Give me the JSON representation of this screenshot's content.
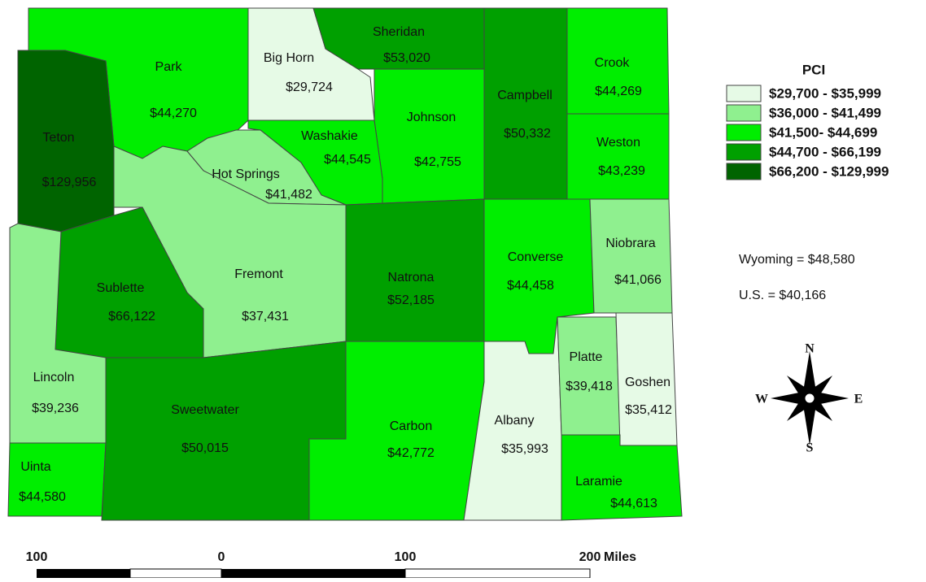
{
  "legend": {
    "title": "PCI",
    "classes": [
      {
        "label": "$29,700 - $35,999",
        "color": "#e6fae6"
      },
      {
        "label": "$36,000 - $41,499",
        "color": "#8ff08f"
      },
      {
        "label": "$41,500- $44,699",
        "color": "#00ee00"
      },
      {
        "label": "$44,700 - $66,199",
        "color": "#00a000"
      },
      {
        "label": "$66,200 - $129,999",
        "color": "#006400"
      }
    ]
  },
  "counties": [
    {
      "name": "Park",
      "pci": "$44,270",
      "color": "#00ee00"
    },
    {
      "name": "Big Horn",
      "pci": "$29,724",
      "color": "#e6fae6"
    },
    {
      "name": "Sheridan",
      "pci": "$53,020",
      "color": "#00a000"
    },
    {
      "name": "Campbell",
      "pci": "$50,332",
      "color": "#00a000"
    },
    {
      "name": "Crook",
      "pci": "$44,269",
      "color": "#00ee00"
    },
    {
      "name": "Weston",
      "pci": "$43,239",
      "color": "#00ee00"
    },
    {
      "name": "Johnson",
      "pci": "$42,755",
      "color": "#00ee00"
    },
    {
      "name": "Washakie",
      "pci": "$44,545",
      "color": "#00ee00"
    },
    {
      "name": "Hot Springs",
      "pci": "$41,482",
      "color": "#8ff08f"
    },
    {
      "name": "Teton",
      "pci": "$129,956",
      "color": "#006400"
    },
    {
      "name": "Fremont",
      "pci": "$37,431",
      "color": "#8ff08f"
    },
    {
      "name": "Sublette",
      "pci": "$66,122",
      "color": "#00a000"
    },
    {
      "name": "Lincoln",
      "pci": "$39,236",
      "color": "#8ff08f"
    },
    {
      "name": "Uinta",
      "pci": "$44,580",
      "color": "#00ee00"
    },
    {
      "name": "Sweetwater",
      "pci": "$50,015",
      "color": "#00a000"
    },
    {
      "name": "Natrona",
      "pci": "$52,185",
      "color": "#00a000"
    },
    {
      "name": "Carbon",
      "pci": "$42,772",
      "color": "#00ee00"
    },
    {
      "name": "Converse",
      "pci": "$44,458",
      "color": "#00ee00"
    },
    {
      "name": "Niobrara",
      "pci": "$41,066",
      "color": "#8ff08f"
    },
    {
      "name": "Albany",
      "pci": "$35,993",
      "color": "#e6fae6"
    },
    {
      "name": "Platte",
      "pci": "$39,418",
      "color": "#8ff08f"
    },
    {
      "name": "Goshen",
      "pci": "$35,412",
      "color": "#e6fae6"
    },
    {
      "name": "Laramie",
      "pci": "$44,613",
      "color": "#00ee00"
    }
  ],
  "notes": [
    "Wyoming = $48,580",
    "U.S. = $40,166"
  ],
  "compass": {
    "n": "N",
    "e": "E",
    "s": "S",
    "w": "W"
  },
  "scale": {
    "labels": [
      "100",
      "0",
      "100",
      "200"
    ],
    "unit": "Miles"
  }
}
